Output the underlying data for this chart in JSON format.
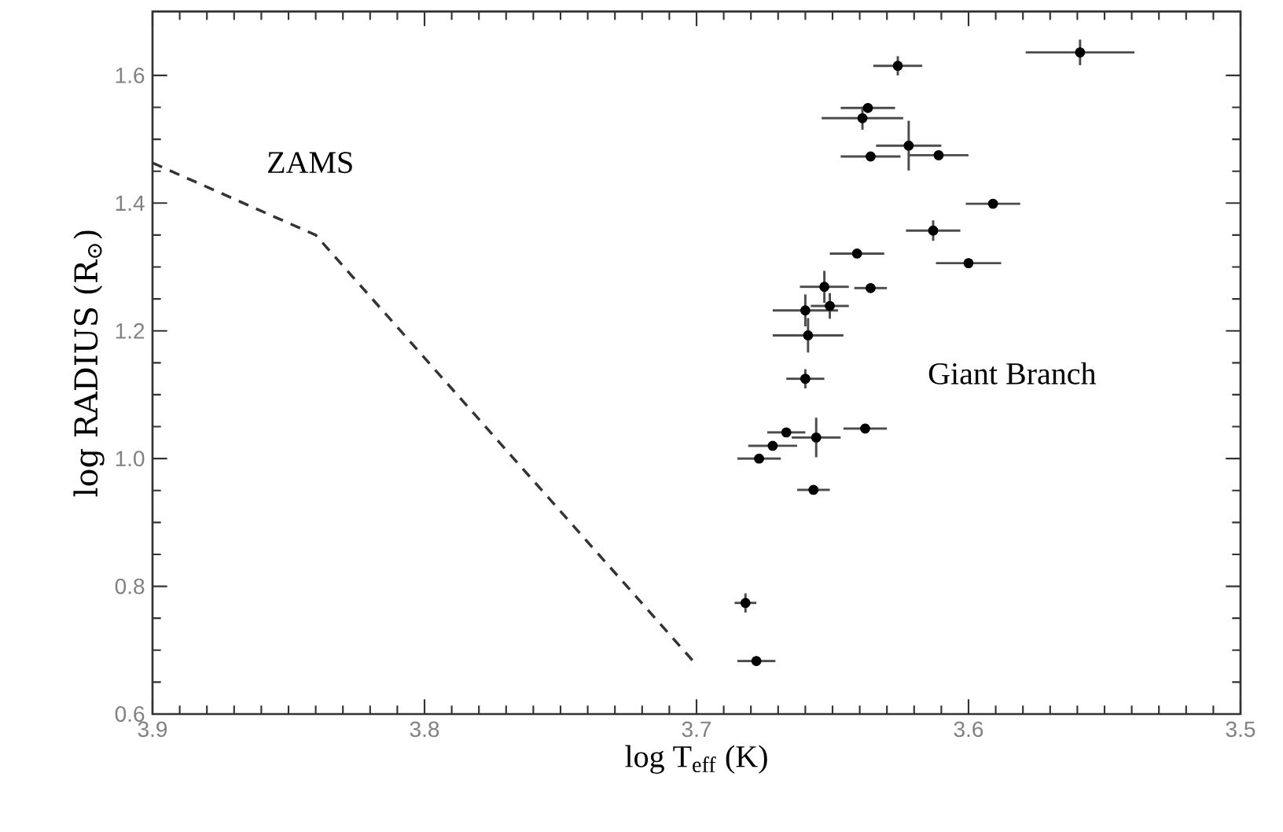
{
  "chart_data": {
    "type": "scatter",
    "xlabel": "log T$_{eff}$ (K)",
    "ylabel": "log RADIUS (R$_{⊙}$)",
    "xlim": [
      3.9,
      3.5
    ],
    "ylim": [
      0.6,
      1.7
    ],
    "xticks": [
      3.9,
      3.8,
      3.7,
      3.6,
      3.5
    ],
    "yticks": [
      0.6,
      0.8,
      {
        "value": 1.0,
        "label": "1.0"
      },
      1.2,
      1.4,
      1.6
    ],
    "annotations": [
      "ZAMS",
      "Giant Branch"
    ],
    "series": [
      {
        "type": "line",
        "color": "#333333",
        "line_style": "dashed",
        "marker": "none",
        "x": [
          3.9,
          3.84,
          3.7
        ],
        "values": [
          1.463,
          1.35,
          0.677
        ]
      },
      {
        "color": "#000000",
        "marker": "circle",
        "x": [
          3.559,
          3.626,
          3.637,
          3.639,
          3.622,
          3.636,
          3.611,
          3.591,
          3.613,
          3.641,
          3.6,
          3.653,
          3.636,
          3.651,
          3.66,
          3.659,
          3.66,
          3.667,
          3.656,
          3.672,
          3.677,
          3.638,
          3.657,
          3.682,
          3.678
        ],
        "values": [
          1.636,
          1.615,
          1.549,
          1.533,
          1.49,
          1.473,
          1.475,
          1.399,
          1.357,
          1.321,
          1.306,
          1.269,
          1.267,
          1.239,
          1.232,
          1.193,
          1.125,
          1.041,
          1.033,
          1.02,
          1.0,
          1.047,
          0.951,
          0.774,
          0.683
        ],
        "xerrors": [
          0.02,
          0.009,
          0.01,
          0.015,
          0.012,
          0.011,
          0.011,
          0.01,
          0.01,
          0.01,
          0.012,
          0.009,
          0.006,
          0.007,
          0.012,
          0.013,
          0.007,
          0.007,
          0.009,
          0.009,
          0.008,
          0.008,
          0.006,
          0.004,
          0.007
        ],
        "errors": [
          0.02,
          0.015,
          null,
          0.018,
          0.039,
          null,
          null,
          null,
          0.016,
          null,
          null,
          0.025,
          null,
          0.02,
          0.025,
          0.027,
          0.015,
          null,
          0.031,
          null,
          null,
          null,
          null,
          0.015,
          null
        ]
      }
    ]
  }
}
